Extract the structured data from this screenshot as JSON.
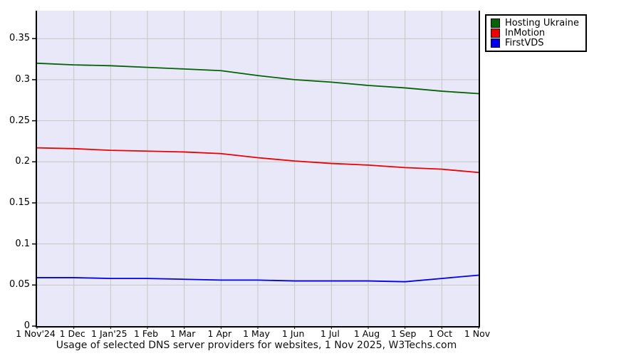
{
  "colors": {
    "plot_background": "#e8e8f8",
    "grid": "#c6c6c6",
    "axis": "#000000",
    "legend_border": "#000000",
    "series_green": "#066206",
    "series_red": "#ee0000",
    "series_blue": "#0000ee"
  },
  "chart_data": {
    "type": "line",
    "title": "Usage of selected DNS server providers for websites, 1 Nov 2025, W3Techs.com",
    "xlabel": "",
    "ylabel": "",
    "ylim": [
      0,
      0.384
    ],
    "grid": true,
    "legend_position": "top-right-outside",
    "yticks": [
      {
        "value": 0,
        "label": "0"
      },
      {
        "value": 0.05,
        "label": "0.05"
      },
      {
        "value": 0.1,
        "label": "0.1"
      },
      {
        "value": 0.15,
        "label": "0.15"
      },
      {
        "value": 0.2,
        "label": "0.2"
      },
      {
        "value": 0.25,
        "label": "0.25"
      },
      {
        "value": 0.3,
        "label": "0.3"
      },
      {
        "value": 0.35,
        "label": "0.35"
      }
    ],
    "categories": [
      "1 Nov'24",
      "1 Dec",
      "1 Jan'25",
      "1 Feb",
      "1 Mar",
      "1 Apr",
      "1 May",
      "1 Jun",
      "1 Jul",
      "1 Aug",
      "1 Sep",
      "1 Oct",
      "1 Nov"
    ],
    "series": [
      {
        "name": "Hosting Ukraine",
        "color_key": "series_green",
        "values": [
          0.32,
          0.318,
          0.317,
          0.315,
          0.313,
          0.311,
          0.305,
          0.3,
          0.297,
          0.293,
          0.29,
          0.286,
          0.283
        ]
      },
      {
        "name": "InMotion",
        "color_key": "series_red",
        "values": [
          0.217,
          0.216,
          0.214,
          0.213,
          0.212,
          0.21,
          0.205,
          0.201,
          0.198,
          0.196,
          0.193,
          0.191,
          0.187
        ]
      },
      {
        "name": "FirstVDS",
        "color_key": "series_blue",
        "values": [
          0.059,
          0.059,
          0.058,
          0.058,
          0.057,
          0.056,
          0.056,
          0.055,
          0.055,
          0.055,
          0.054,
          0.058,
          0.062
        ]
      }
    ]
  }
}
